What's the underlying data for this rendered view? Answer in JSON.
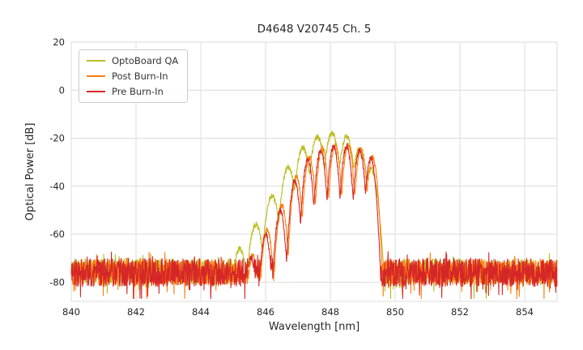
{
  "chart_data": {
    "type": "line",
    "title": "D4648 V20745 Ch. 5",
    "xlabel": "Wavelength [nm]",
    "ylabel": "Optical Power [dB]",
    "xlim": [
      840,
      855
    ],
    "ylim": [
      -88,
      20
    ],
    "xticks": [
      840,
      842,
      844,
      846,
      848,
      850,
      852,
      854
    ],
    "yticks": [
      20,
      0,
      -20,
      -40,
      -60,
      -80
    ],
    "grid": true,
    "grid_color": "#dcdcdc",
    "legend_position": "upper left",
    "series": [
      {
        "name": "OptoBoard QA",
        "color": "#bcbd22",
        "noise_floor_db": -75.5,
        "noise_spread_db": 5.5,
        "mode_falloff_db_per_nm2": 266,
        "seed": 11,
        "mode_peaks": [
          [
            845.2,
            -66
          ],
          [
            845.7,
            -56
          ],
          [
            846.2,
            -44
          ],
          [
            846.7,
            -32
          ],
          [
            847.15,
            -24
          ],
          [
            847.6,
            -19.5
          ],
          [
            848.05,
            -18
          ],
          [
            848.5,
            -19.5
          ],
          [
            848.9,
            -24.5
          ],
          [
            849.25,
            -33
          ]
        ]
      },
      {
        "name": "Post Burn-In",
        "color": "#ff7f0e",
        "noise_floor_db": -76,
        "noise_spread_db": 5.5,
        "mode_falloff_db_per_nm2": 520,
        "seed": 22,
        "mode_peaks": [
          [
            845.6,
            -69
          ],
          [
            846.05,
            -58
          ],
          [
            846.5,
            -48
          ],
          [
            846.95,
            -36
          ],
          [
            847.35,
            -28
          ],
          [
            847.75,
            -24
          ],
          [
            848.15,
            -23
          ],
          [
            848.55,
            -23
          ],
          [
            848.95,
            -24.5
          ],
          [
            849.3,
            -28
          ]
        ]
      },
      {
        "name": "Pre Burn-In",
        "color": "#d62728",
        "noise_floor_db": -76,
        "noise_spread_db": 6,
        "mode_falloff_db_per_nm2": 541,
        "seed": 33,
        "mode_peaks": [
          [
            845.55,
            -70
          ],
          [
            846.0,
            -60
          ],
          [
            846.45,
            -50
          ],
          [
            846.9,
            -38
          ],
          [
            847.3,
            -29
          ],
          [
            847.7,
            -25
          ],
          [
            848.1,
            -23.5
          ],
          [
            848.5,
            -23.5
          ],
          [
            848.9,
            -25
          ],
          [
            849.25,
            -28.5
          ]
        ]
      }
    ]
  }
}
